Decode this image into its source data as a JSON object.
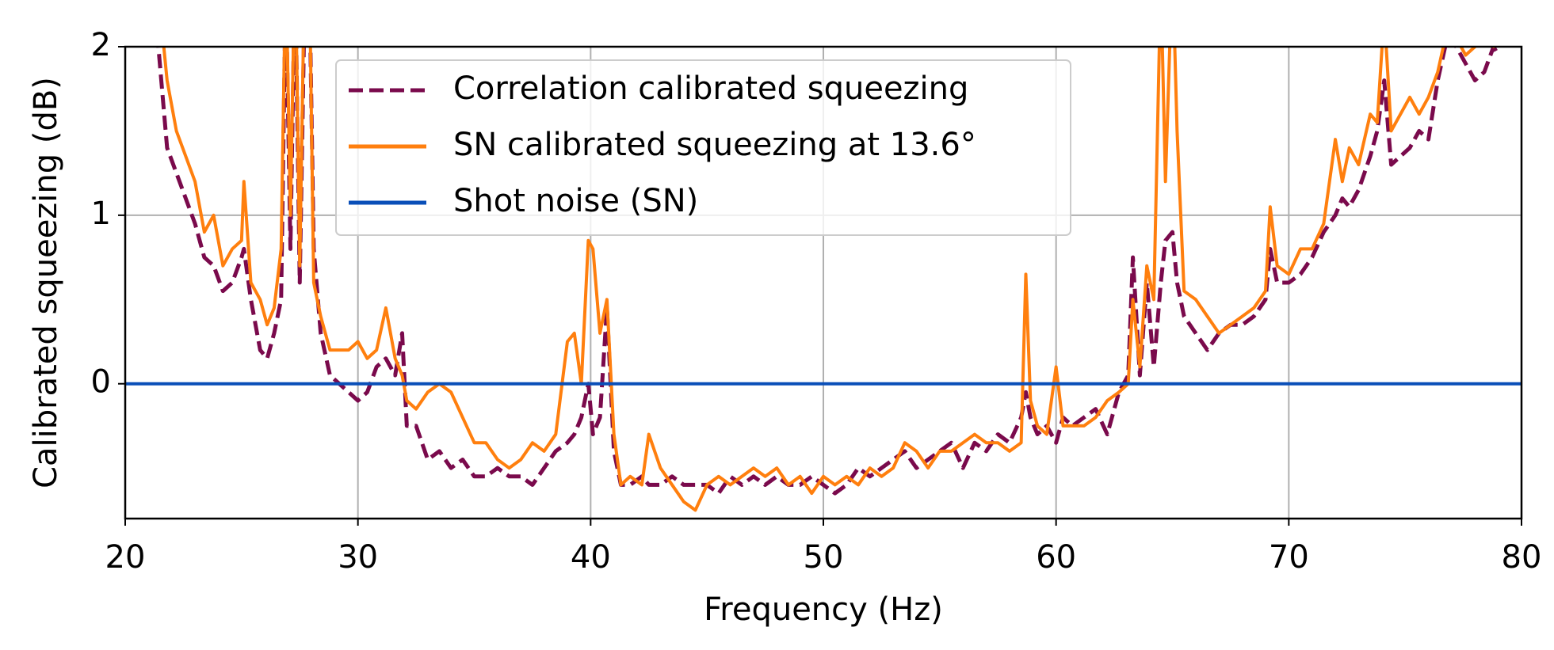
{
  "chart_data": {
    "type": "line",
    "xlabel": "Frequency (Hz)",
    "ylabel": "Calibrated squeezing (dB)",
    "xlim": [
      20,
      80
    ],
    "ylim": [
      -0.8,
      2
    ],
    "xticks": [
      20,
      30,
      40,
      50,
      60,
      70,
      80
    ],
    "yticks": [
      0,
      1,
      2
    ],
    "grid": true,
    "legend": "upper left",
    "x": [
      21.3,
      21.8,
      22.2,
      22.6,
      23.0,
      23.4,
      23.8,
      24.2,
      24.6,
      25.0,
      25.1,
      25.4,
      25.8,
      26.1,
      26.4,
      26.7,
      26.9,
      27.1,
      27.3,
      27.5,
      27.7,
      27.9,
      28.1,
      28.4,
      28.8,
      29.2,
      29.6,
      30.0,
      30.4,
      30.8,
      31.2,
      31.6,
      31.9,
      32.1,
      32.5,
      33.0,
      33.5,
      34.0,
      34.5,
      35.0,
      35.5,
      36.0,
      36.5,
      37.0,
      37.5,
      38.0,
      38.5,
      39.0,
      39.3,
      39.6,
      39.9,
      40.1,
      40.4,
      40.7,
      41.0,
      41.3,
      41.7,
      42.2,
      42.5,
      43.0,
      43.5,
      44.0,
      44.5,
      45.0,
      45.5,
      46.0,
      46.5,
      47.0,
      47.5,
      48.0,
      48.5,
      49.0,
      49.5,
      50.0,
      50.5,
      51.0,
      51.5,
      52.0,
      52.5,
      53.0,
      53.5,
      54.0,
      54.5,
      55.0,
      55.5,
      56.0,
      56.5,
      57.0,
      57.5,
      58.0,
      58.5,
      58.7,
      58.9,
      59.2,
      59.6,
      60.0,
      60.3,
      60.7,
      61.2,
      61.7,
      62.2,
      62.7,
      63.1,
      63.3,
      63.6,
      63.9,
      64.2,
      64.5,
      64.7,
      65.0,
      65.2,
      65.5,
      66.0,
      66.5,
      67.0,
      67.5,
      68.0,
      68.5,
      69.0,
      69.2,
      69.5,
      70.0,
      70.5,
      71.0,
      71.5,
      72.0,
      72.3,
      72.6,
      73.0,
      73.5,
      73.8,
      74.1,
      74.4,
      74.8,
      75.2,
      75.6,
      76.0,
      76.4,
      76.8,
      77.2,
      77.6,
      78.0,
      78.4,
      78.8,
      79.0
    ],
    "series": [
      {
        "name": "Correlation calibrated squeezing",
        "color": "#7a0a4c",
        "linestyle": "dashed",
        "values": [
          2.2,
          1.4,
          1.25,
          1.1,
          0.95,
          0.75,
          0.7,
          0.55,
          0.6,
          0.75,
          0.8,
          0.5,
          0.2,
          0.15,
          0.3,
          0.5,
          2.4,
          0.8,
          2.5,
          0.6,
          2.2,
          2.5,
          0.8,
          0.3,
          0.05,
          0.0,
          -0.05,
          -0.1,
          -0.05,
          0.1,
          0.15,
          0.05,
          0.3,
          -0.25,
          -0.25,
          -0.45,
          -0.4,
          -0.5,
          -0.45,
          -0.55,
          -0.55,
          -0.5,
          -0.55,
          -0.55,
          -0.6,
          -0.5,
          -0.4,
          -0.35,
          -0.3,
          -0.2,
          0.0,
          -0.3,
          -0.2,
          0.45,
          -0.4,
          -0.6,
          -0.6,
          -0.55,
          -0.6,
          -0.6,
          -0.55,
          -0.6,
          -0.6,
          -0.6,
          -0.65,
          -0.55,
          -0.6,
          -0.55,
          -0.6,
          -0.55,
          -0.6,
          -0.6,
          -0.55,
          -0.6,
          -0.65,
          -0.6,
          -0.5,
          -0.55,
          -0.5,
          -0.45,
          -0.4,
          -0.5,
          -0.45,
          -0.4,
          -0.35,
          -0.5,
          -0.35,
          -0.4,
          -0.3,
          -0.35,
          -0.2,
          -0.05,
          -0.2,
          -0.3,
          -0.25,
          -0.35,
          -0.2,
          -0.25,
          -0.2,
          -0.15,
          -0.3,
          -0.05,
          0.05,
          0.75,
          0.05,
          0.6,
          0.1,
          0.6,
          0.85,
          0.9,
          0.6,
          0.4,
          0.3,
          0.2,
          0.3,
          0.35,
          0.35,
          0.4,
          0.5,
          0.8,
          0.6,
          0.6,
          0.65,
          0.75,
          0.9,
          1.0,
          1.1,
          1.05,
          1.15,
          1.35,
          1.5,
          1.8,
          1.3,
          1.35,
          1.4,
          1.5,
          1.45,
          1.8,
          2.05,
          2.0,
          1.9,
          1.8,
          1.85,
          2.0,
          1.95
        ]
      },
      {
        "name": "SN calibrated squeezing at 13.6°",
        "color": "#ff7f0e",
        "linestyle": "solid",
        "values": [
          2.5,
          1.8,
          1.5,
          1.35,
          1.2,
          0.9,
          1.0,
          0.7,
          0.8,
          0.85,
          1.2,
          0.6,
          0.5,
          0.35,
          0.45,
          0.8,
          2.5,
          1.0,
          2.6,
          0.7,
          2.4,
          2.6,
          0.6,
          0.4,
          0.2,
          0.2,
          0.2,
          0.25,
          0.15,
          0.2,
          0.45,
          0.15,
          0.05,
          -0.1,
          -0.15,
          -0.05,
          0.0,
          -0.05,
          -0.2,
          -0.35,
          -0.35,
          -0.45,
          -0.5,
          -0.45,
          -0.35,
          -0.4,
          -0.3,
          0.25,
          0.3,
          0.0,
          0.85,
          0.8,
          0.3,
          0.5,
          -0.3,
          -0.6,
          -0.55,
          -0.6,
          -0.3,
          -0.5,
          -0.6,
          -0.7,
          -0.75,
          -0.6,
          -0.55,
          -0.6,
          -0.55,
          -0.5,
          -0.55,
          -0.5,
          -0.6,
          -0.55,
          -0.65,
          -0.55,
          -0.6,
          -0.55,
          -0.6,
          -0.5,
          -0.55,
          -0.5,
          -0.35,
          -0.4,
          -0.5,
          -0.4,
          -0.4,
          -0.35,
          -0.3,
          -0.35,
          -0.35,
          -0.4,
          -0.35,
          0.65,
          -0.1,
          -0.25,
          -0.3,
          0.1,
          -0.25,
          -0.25,
          -0.25,
          -0.2,
          -0.1,
          -0.05,
          0.0,
          0.5,
          0.1,
          0.7,
          0.5,
          2.4,
          1.2,
          2.5,
          1.5,
          0.55,
          0.5,
          0.4,
          0.3,
          0.35,
          0.4,
          0.45,
          0.55,
          1.05,
          0.7,
          0.65,
          0.8,
          0.8,
          0.95,
          1.45,
          1.2,
          1.4,
          1.3,
          1.6,
          1.55,
          2.2,
          1.5,
          1.6,
          1.7,
          1.6,
          1.7,
          1.85,
          2.1,
          2.05,
          1.95,
          2.0,
          2.05,
          2.0,
          2.05
        ]
      },
      {
        "name": "Shot noise (SN)",
        "color": "#0a4fb8",
        "linestyle": "solid",
        "x": [
          20,
          80
        ],
        "values": [
          0,
          0
        ]
      }
    ]
  }
}
